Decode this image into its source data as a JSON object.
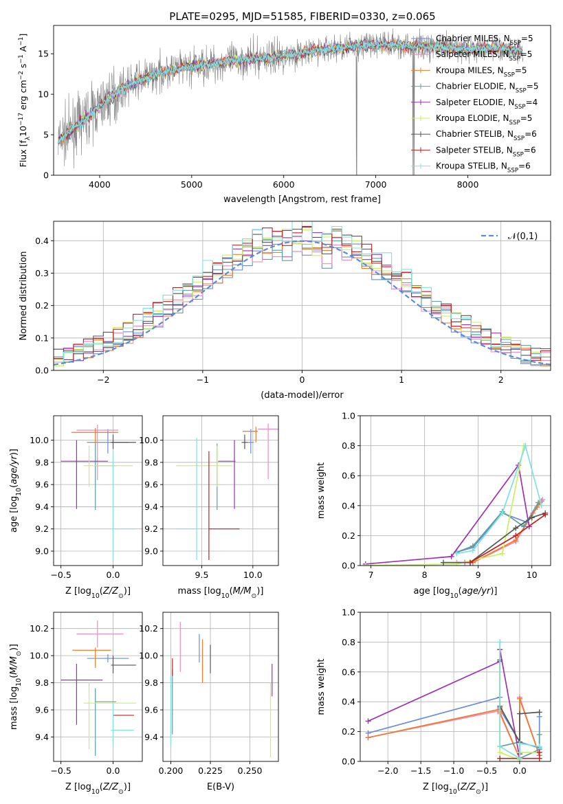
{
  "figure_title": "PLATE=0295, MJD=51585, FIBERID=0330, z=0.065",
  "series_names": [
    "Chabrier MILES, N_SSP=5",
    "Salpeter MILES, N_SSP=5",
    "Kroupa MILES, N_SSP=5",
    "Chabrier ELODIE, N_SSP=5",
    "Salpeter ELODIE, N_SSP=4",
    "Kroupa ELODIE, N_SSP=5",
    "Chabrier STELIB, N_SSP=6",
    "Salpeter STELIB, N_SSP=6",
    "Kroupa STELIB, N_SSP=6"
  ],
  "legend_items": [
    {
      "label": "Chabrier MILES, N",
      "sub": "SSP",
      "rest": "=5"
    },
    {
      "label": "Salpeter MILES, N",
      "sub": "SSP",
      "rest": "=5"
    },
    {
      "label": "Kroupa MILES, N",
      "sub": "SSP",
      "rest": "=5"
    },
    {
      "label": "Chabrier ELODIE, N",
      "sub": "SSP",
      "rest": "=5"
    },
    {
      "label": "Salpeter ELODIE, N",
      "sub": "SSP",
      "rest": "=4"
    },
    {
      "label": "Kroupa ELODIE, N",
      "sub": "SSP",
      "rest": "=5"
    },
    {
      "label": "Chabrier STELIB, N",
      "sub": "SSP",
      "rest": "=6"
    },
    {
      "label": "Salpeter STELIB, N",
      "sub": "SSP",
      "rest": "=6"
    },
    {
      "label": "Kroupa STELIB, N",
      "sub": "SSP",
      "rest": "=6"
    }
  ],
  "colors": [
    "#6a8bd6",
    "#f08ac0",
    "#f07a28",
    "#5f9ea0",
    "#9b30b0",
    "#c8f060",
    "#555555",
    "#c02020",
    "#80e0e0"
  ],
  "chart_data": [
    {
      "id": "spectrum",
      "type": "line",
      "title": "PLATE=0295, MJD=51585, FIBERID=0330, z=0.065",
      "xlabel": "wavelength [Angstrom, rest frame]",
      "ylabel": "Flux [fλ10^-17 erg cm^-2 s^-1 A^-1]",
      "xlim": [
        3500,
        8900
      ],
      "ylim": [
        0,
        18.5
      ],
      "xticks": [
        4000,
        5000,
        6000,
        7000,
        8000
      ],
      "yticks": [
        0,
        5,
        10,
        15
      ],
      "legend": "upper right",
      "grid": false,
      "data_color": "#808080",
      "continuum": {
        "x": [
          3550,
          3700,
          3900,
          4100,
          4300,
          4500,
          4700,
          5000,
          5300,
          5600,
          5900,
          6200,
          6500,
          6800,
          7100,
          7400,
          7700,
          8000,
          8300,
          8600
        ],
        "y": [
          4.2,
          5.6,
          7.6,
          9.5,
          11.1,
          12.0,
          12.8,
          13.4,
          13.9,
          14.3,
          14.6,
          15.1,
          15.6,
          16.0,
          16.1,
          16.0,
          15.8,
          15.6,
          15.7,
          15.4
        ]
      }
    },
    {
      "id": "residuals",
      "type": "histogram",
      "xlabel": "(data-model)/error",
      "ylabel": "Normed distribution",
      "xlim": [
        -2.5,
        2.5
      ],
      "ylim": [
        0,
        0.46
      ],
      "xticks": [
        -2,
        -1,
        0,
        1,
        2
      ],
      "yticks": [
        0.0,
        0.1,
        0.2,
        0.3,
        0.4
      ],
      "reference_label": "𝒩(0,1)",
      "legend": "upper right",
      "grid": true
    },
    {
      "id": "age_vs_Z",
      "type": "errorbar",
      "xlabel": "Z [log10(Z/Z☉)]",
      "ylabel": "age [log10(age/yr)]",
      "xlim": [
        -0.57,
        0.28
      ],
      "ylim": [
        8.87,
        10.22
      ],
      "xticks": [
        -0.5,
        0.0
      ],
      "yticks": [
        9.0,
        9.2,
        9.4,
        9.6,
        9.8,
        10.0
      ],
      "points": [
        {
          "x": -0.05,
          "y": 9.98,
          "xerr": [
            0.2,
            0.2
          ],
          "yerr": [
            0.1,
            0.12
          ]
        },
        {
          "x": -0.15,
          "y": 10.09,
          "xerr": [
            0.2,
            0.2
          ],
          "yerr": [
            0.45,
            0.05
          ]
        },
        {
          "x": -0.17,
          "y": 10.07,
          "xerr": [
            0.23,
            0.22
          ],
          "yerr": [
            0.1,
            0.04
          ]
        },
        {
          "x": -0.17,
          "y": 9.77,
          "xerr": [
            0.0,
            0.2
          ],
          "yerr": [
            0.4,
            0.2
          ]
        },
        {
          "x": -0.35,
          "y": 9.81,
          "xerr": [
            0.15,
            0.3
          ],
          "yerr": [
            0.43,
            0.19
          ]
        },
        {
          "x": -0.23,
          "y": 9.77,
          "xerr": [
            0.05,
            0.42
          ],
          "yerr": [
            0.19,
            0.18
          ]
        },
        {
          "x": 0.0,
          "y": 9.98,
          "xerr": [
            0.02,
            0.22
          ],
          "yerr": [
            0.06,
            0.07
          ]
        },
        {
          "x": 0.0,
          "y": 9.2,
          "xerr": [
            0.0,
            0.0
          ],
          "yerr": [
            0.0,
            0.0
          ]
        },
        {
          "x": 0.0,
          "y": 9.2,
          "xerr": [
            0.02,
            0.2
          ],
          "yerr": [
            0.28,
            0.7
          ]
        }
      ]
    },
    {
      "id": "age_vs_mass",
      "type": "errorbar",
      "xlabel": "mass [log10(M/M☉)]",
      "ylabel": "",
      "xlim": [
        9.12,
        10.25
      ],
      "ylim": [
        8.87,
        10.22
      ],
      "xticks": [
        9.5,
        10.0
      ],
      "yticks": [
        9.0,
        9.2,
        9.4,
        9.6,
        9.8,
        10.0
      ],
      "points": [
        {
          "x": 9.98,
          "y": 9.98,
          "xerr": [
            0.03,
            0.03
          ],
          "yerr": [
            0.1,
            0.12
          ]
        },
        {
          "x": 10.15,
          "y": 10.1,
          "xerr": [
            0.1,
            0.1
          ],
          "yerr": [
            0.45,
            0.05
          ]
        },
        {
          "x": 10.03,
          "y": 10.08,
          "xerr": [
            0.13,
            0.02
          ],
          "yerr": [
            0.1,
            0.04
          ]
        },
        {
          "x": 9.65,
          "y": 9.77,
          "xerr": [
            0.0,
            0.01
          ],
          "yerr": [
            0.4,
            0.2
          ]
        },
        {
          "x": 9.82,
          "y": 9.81,
          "xerr": [
            0.16,
            0.01
          ],
          "yerr": [
            0.43,
            0.19
          ]
        },
        {
          "x": 9.65,
          "y": 9.77,
          "xerr": [
            0.4,
            0.15
          ],
          "yerr": [
            0.19,
            0.18
          ]
        },
        {
          "x": 9.92,
          "y": 9.98,
          "xerr": [
            0.03,
            0.03
          ],
          "yerr": [
            0.06,
            0.07
          ]
        },
        {
          "x": 9.57,
          "y": 9.2,
          "xerr": [
            0.0,
            0.3
          ],
          "yerr": [
            0.28,
            0.7
          ]
        },
        {
          "x": 9.45,
          "y": 9.2,
          "xerr": [
            0.2,
            0.0
          ],
          "yerr": [
            0.28,
            0.82
          ]
        }
      ]
    },
    {
      "id": "weight_vs_age",
      "type": "line",
      "xlabel": "age [log10(age/yr)]",
      "ylabel": "mass weight",
      "xlim": [
        6.8,
        10.35
      ],
      "ylim": [
        0,
        1.0
      ],
      "xticks": [
        7,
        8,
        9,
        10
      ],
      "yticks": [
        0.0,
        0.2,
        0.4,
        0.6,
        0.8,
        1.0
      ],
      "series": [
        {
          "x": [
            8.6,
            8.9,
            9.45,
            9.9,
            10.18
          ],
          "y": [
            0.09,
            0.12,
            0.35,
            0.29,
            0.43
          ]
        },
        {
          "x": [
            8.6,
            8.9,
            9.7,
            10.02,
            10.2
          ],
          "y": [
            0.02,
            0.02,
            0.16,
            0.35,
            0.44
          ]
        },
        {
          "x": [
            8.75,
            8.9,
            9.7,
            10.1,
            10.15
          ],
          "y": [
            0.02,
            0.02,
            0.17,
            0.39,
            0.42
          ]
        },
        {
          "x": [
            8.6,
            8.9,
            9.45,
            9.85,
            10.12
          ],
          "y": [
            0.09,
            0.13,
            0.36,
            0.26,
            0.42
          ]
        },
        {
          "x": [
            6.9,
            8.5,
            9.75,
            9.95
          ],
          "y": [
            0.01,
            0.06,
            0.67,
            0.26
          ]
        },
        {
          "x": [
            6.9,
            8.6,
            9.45,
            9.85
          ],
          "y": [
            0.0,
            0.01,
            0.08,
            0.8
          ]
        },
        {
          "x": [
            8.35,
            8.85,
            9.7,
            10.0,
            10.25
          ],
          "y": [
            0.02,
            0.02,
            0.25,
            0.32,
            0.35
          ]
        },
        {
          "x": [
            8.85,
            9.7,
            10.25
          ],
          "y": [
            0.02,
            0.2,
            0.34
          ]
        },
        {
          "x": [
            8.6,
            8.9,
            9.45,
            9.88,
            10.18
          ],
          "y": [
            0.08,
            0.1,
            0.35,
            0.8,
            0.4
          ]
        }
      ]
    },
    {
      "id": "mass_vs_Z",
      "type": "errorbar",
      "xlabel": "Z [log10(Z/Z☉)]",
      "ylabel": "mass [log10(M/M☉)]",
      "xlim": [
        -0.57,
        0.28
      ],
      "ylim": [
        9.22,
        10.32
      ],
      "xticks": [
        -0.5,
        0.0
      ],
      "yticks": [
        9.4,
        9.6,
        9.8,
        10.0,
        10.2
      ],
      "points": [
        {
          "x": -0.05,
          "y": 9.98,
          "xerr": [
            0.2,
            0.2
          ],
          "yerr": [
            0.03,
            0.03
          ]
        },
        {
          "x": -0.15,
          "y": 10.16,
          "xerr": [
            0.2,
            0.25
          ],
          "yerr": [
            0.1,
            0.1
          ]
        },
        {
          "x": -0.17,
          "y": 10.04,
          "xerr": [
            0.22,
            0.15
          ],
          "yerr": [
            0.13,
            0.02
          ]
        },
        {
          "x": -0.17,
          "y": 9.66,
          "xerr": [
            0.0,
            0.2
          ],
          "yerr": [
            0.4,
            0.1
          ]
        },
        {
          "x": -0.35,
          "y": 9.82,
          "xerr": [
            0.15,
            0.25
          ],
          "yerr": [
            0.33,
            0.12
          ]
        },
        {
          "x": -0.23,
          "y": 9.65,
          "xerr": [
            0.05,
            0.45
          ],
          "yerr": [
            0.34,
            0.15
          ]
        },
        {
          "x": 0.0,
          "y": 9.93,
          "xerr": [
            0.02,
            0.22
          ],
          "yerr": [
            0.06,
            0.07
          ]
        },
        {
          "x": 0.0,
          "y": 9.56,
          "xerr": [
            0.0,
            0.2
          ],
          "yerr": [
            0.0,
            0.0
          ]
        },
        {
          "x": 0.0,
          "y": 9.45,
          "xerr": [
            0.02,
            0.2
          ],
          "yerr": [
            0.12,
            0.2
          ]
        }
      ]
    },
    {
      "id": "mass_vs_EBV",
      "type": "errorbar",
      "xlabel": "E(B-V)",
      "ylabel": "",
      "xlim": [
        0.195,
        0.268
      ],
      "ylim": [
        9.22,
        10.32
      ],
      "xticks": [
        0.2,
        0.225,
        0.25
      ],
      "xtick_labels": [
        "0.200",
        "0.225",
        "0.250"
      ],
      "yticks": [
        9.4,
        9.6,
        9.8,
        10.0,
        10.2
      ],
      "points": [
        {
          "x": 0.218,
          "y": 9.98,
          "yerr": [
            0.03,
            0.18
          ]
        },
        {
          "x": 0.206,
          "y": 10.08,
          "yerr": [
            0.2,
            0.17
          ]
        },
        {
          "x": 0.22,
          "y": 10.0,
          "yerr": [
            0.2,
            0.12
          ]
        },
        {
          "x": 0.201,
          "y": 9.8,
          "yerr": [
            0.38,
            0.1
          ]
        },
        {
          "x": 0.264,
          "y": 9.82,
          "yerr": [
            0.12,
            0.12
          ]
        },
        {
          "x": 0.263,
          "y": 9.6,
          "yerr": [
            0.35,
            0.2
          ]
        },
        {
          "x": 0.225,
          "y": 9.93,
          "yerr": [
            0.06,
            0.15
          ]
        },
        {
          "x": 0.201,
          "y": 9.9,
          "yerr": [
            0.05,
            0.08
          ]
        },
        {
          "x": 0.2,
          "y": 9.45,
          "yerr": [
            0.12,
            0.4
          ]
        }
      ]
    },
    {
      "id": "weight_vs_Z",
      "type": "line",
      "xlabel": "Z [log10(Z/Z☉)]",
      "ylabel": "mass weight",
      "xlim": [
        -2.42,
        0.47
      ],
      "ylim": [
        0,
        1.0
      ],
      "xticks": [
        -2.0,
        -1.5,
        -1.0,
        -0.5,
        0.0
      ],
      "yticks": [
        0.0,
        0.2,
        0.4,
        0.6,
        0.8,
        1.0
      ],
      "series": [
        {
          "x": [
            -2.3,
            -0.3,
            -0.3,
            0.0,
            0.3,
            0.3
          ],
          "y": [
            0.19,
            0.43,
            0.35,
            0.13,
            0.09,
            0.3
          ]
        },
        {
          "x": [
            -2.3,
            -0.3,
            -0.3,
            0.0,
            0.0,
            0.3
          ],
          "y": [
            0.16,
            0.34,
            0.32,
            0.02,
            0.43,
            0.04
          ]
        },
        {
          "x": [
            -2.3,
            -0.3,
            -0.3,
            0.0,
            0.0,
            0.3
          ],
          "y": [
            0.16,
            0.35,
            0.33,
            0.02,
            0.42,
            0.04
          ]
        },
        {
          "x": [
            -0.3,
            -0.3,
            0.0,
            0.0,
            0.3,
            0.3
          ],
          "y": [
            0.36,
            0.1,
            0.13,
            0.02,
            0.08,
            0.18
          ]
        },
        {
          "x": [
            -2.3,
            -0.3,
            -0.3,
            0.0,
            0.0
          ],
          "y": [
            0.27,
            0.67,
            0.75,
            0.02,
            0.05
          ]
        },
        {
          "x": [
            -0.3,
            -0.3,
            0.0,
            0.0,
            0.3
          ],
          "y": [
            0.8,
            0.06,
            0.01,
            0.06,
            0.06
          ]
        },
        {
          "x": [
            -0.3,
            -0.3,
            0.0,
            0.0,
            0.3
          ],
          "y": [
            0.68,
            0.37,
            0.13,
            0.32,
            0.33
          ]
        },
        {
          "x": [
            -0.3,
            0.0,
            0.3,
            0.3
          ],
          "y": [
            0.02,
            0.02,
            0.02,
            0.06
          ]
        },
        {
          "x": [
            -0.3,
            -0.3,
            0.0,
            0.0,
            0.3
          ],
          "y": [
            0.8,
            0.1,
            0.02,
            0.12,
            0.1
          ]
        }
      ]
    }
  ]
}
